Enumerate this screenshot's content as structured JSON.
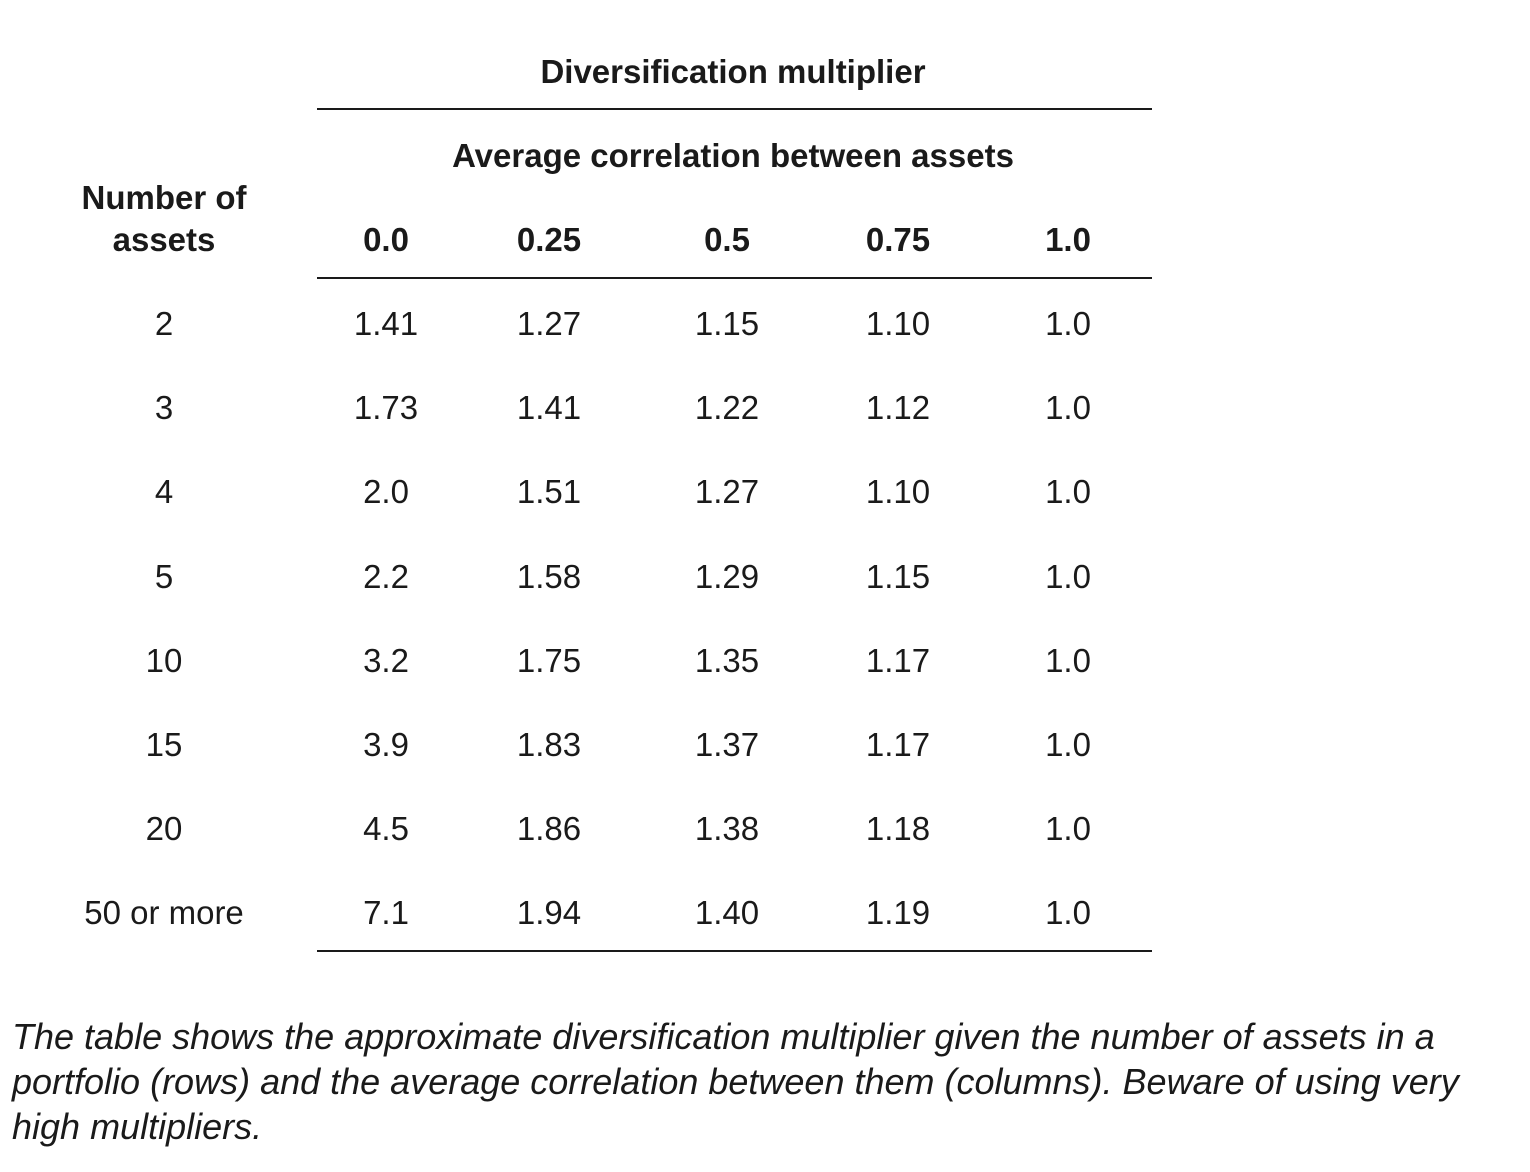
{
  "table": {
    "title": "Diversification multiplier",
    "subtitle": "Average correlation between assets",
    "row_header_line1": "Number of",
    "row_header_line2": "assets",
    "columns": [
      "0.0",
      "0.25",
      "0.5",
      "0.75",
      "1.0"
    ],
    "rows": [
      {
        "label": "2",
        "values": [
          "1.41",
          "1.27",
          "1.15",
          "1.10",
          "1.0"
        ]
      },
      {
        "label": "3",
        "values": [
          "1.73",
          "1.41",
          "1.22",
          "1.12",
          "1.0"
        ]
      },
      {
        "label": "4",
        "values": [
          "2.0",
          "1.51",
          "1.27",
          "1.10",
          "1.0"
        ]
      },
      {
        "label": "5",
        "values": [
          "2.2",
          "1.58",
          "1.29",
          "1.15",
          "1.0"
        ]
      },
      {
        "label": "10",
        "values": [
          "3.2",
          "1.75",
          "1.35",
          "1.17",
          "1.0"
        ]
      },
      {
        "label": "15",
        "values": [
          "3.9",
          "1.83",
          "1.37",
          "1.17",
          "1.0"
        ]
      },
      {
        "label": "20",
        "values": [
          "4.5",
          "1.86",
          "1.38",
          "1.18",
          "1.0"
        ]
      },
      {
        "label": "50 or more",
        "values": [
          "7.1",
          "1.94",
          "1.40",
          "1.19",
          "1.0"
        ]
      }
    ]
  },
  "caption": "The table shows the approximate diversification multiplier given the number of assets in a portfolio (rows) and the average correlation between them (columns). Beware of using very high multipliers."
}
